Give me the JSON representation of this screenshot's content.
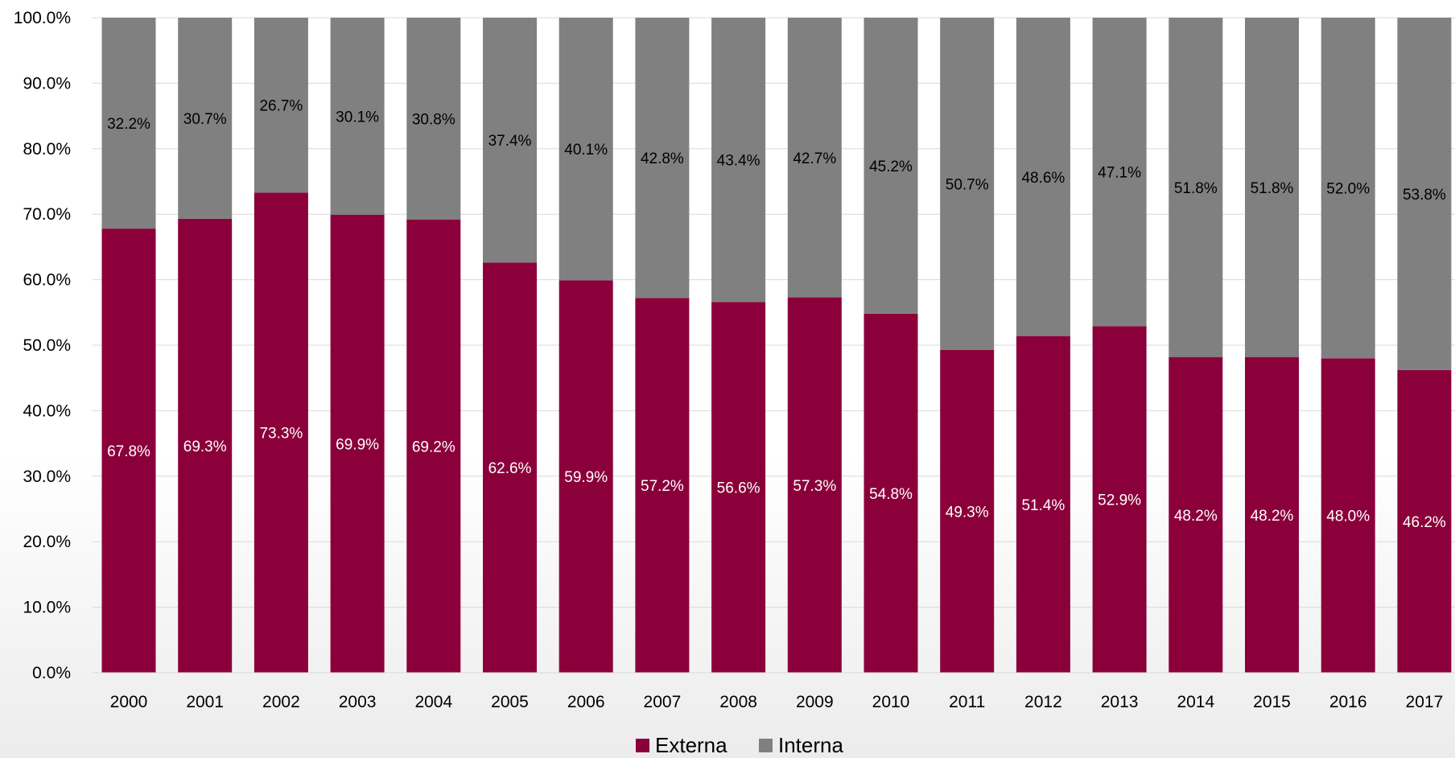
{
  "chart_data": {
    "type": "bar",
    "stacked": true,
    "categories": [
      "2000",
      "2001",
      "2002",
      "2003",
      "2004",
      "2005",
      "2006",
      "2007",
      "2008",
      "2009",
      "2010",
      "2011",
      "2012",
      "2013",
      "2014",
      "2015",
      "2016",
      "2017"
    ],
    "series": [
      {
        "name": "Externa",
        "color": "#8b003a",
        "values": [
          67.8,
          69.3,
          73.3,
          69.9,
          69.2,
          62.6,
          59.9,
          57.2,
          56.6,
          57.3,
          54.8,
          49.3,
          51.4,
          52.9,
          48.2,
          48.2,
          48.0,
          46.2
        ],
        "labels": [
          "67.8%",
          "69.3%",
          "73.3%",
          "69.9%",
          "69.2%",
          "62.6%",
          "59.9%",
          "57.2%",
          "56.6%",
          "57.3%",
          "54.8%",
          "49.3%",
          "51.4%",
          "52.9%",
          "48.2%",
          "48.2%",
          "48.0%",
          "46.2%"
        ]
      },
      {
        "name": "Interna",
        "color": "#808080",
        "values": [
          32.2,
          30.7,
          26.7,
          30.1,
          30.8,
          37.4,
          40.1,
          42.8,
          43.4,
          42.7,
          45.2,
          50.7,
          48.6,
          47.1,
          51.8,
          51.8,
          52.0,
          53.8
        ],
        "labels": [
          "32.2%",
          "30.7%",
          "26.7%",
          "30.1%",
          "30.8%",
          "37.4%",
          "40.1%",
          "42.8%",
          "43.4%",
          "42.7%",
          "45.2%",
          "50.7%",
          "48.6%",
          "47.1%",
          "51.8%",
          "51.8%",
          "52.0%",
          "53.8%"
        ]
      }
    ],
    "yticks": [
      "0.0%",
      "10.0%",
      "20.0%",
      "30.0%",
      "40.0%",
      "50.0%",
      "60.0%",
      "70.0%",
      "80.0%",
      "90.0%",
      "100.0%"
    ],
    "ylim": [
      0,
      100
    ],
    "grid": true,
    "legend_position": "bottom-center",
    "title": "",
    "xlabel": "",
    "ylabel": ""
  }
}
